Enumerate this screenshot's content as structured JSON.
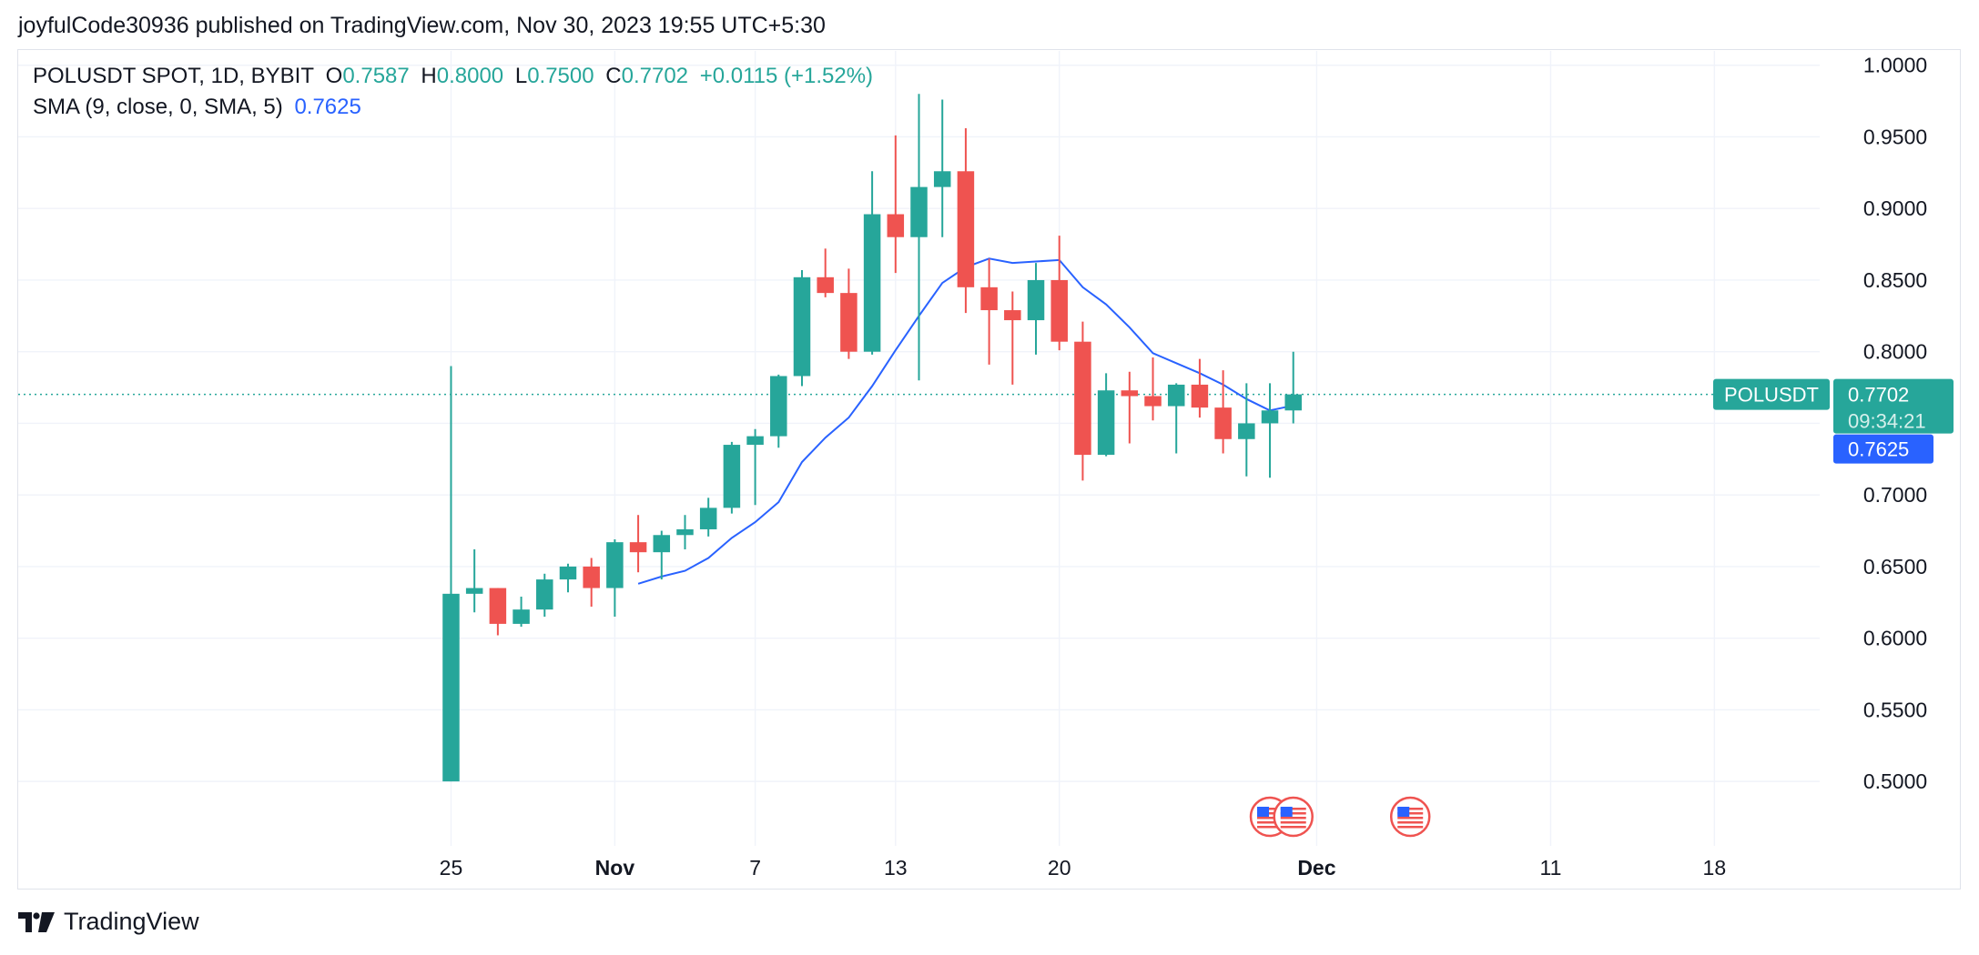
{
  "header": {
    "published_line": "joyfulCode30936 published on TradingView.com, Nov 30, 2023 19:55 UTC+5:30"
  },
  "legend": {
    "symbol": "POLUSDT SPOT, 1D, BYBIT",
    "o_label": "O",
    "o_value": "0.7587",
    "h_label": "H",
    "h_value": "0.8000",
    "l_label": "L",
    "l_value": "0.7500",
    "c_label": "C",
    "c_value": "0.7702",
    "change": "+0.0115 (+1.52%)",
    "sma_label": "SMA (9, close, 0, SMA, 5)",
    "sma_value": "0.7625"
  },
  "price_badge": {
    "symbol": "POLUSDT",
    "price": "0.7702",
    "countdown": "09:34:21",
    "sma_price": "0.7625"
  },
  "footer": {
    "brand": "TradingView"
  },
  "colors": {
    "up": "#26a69a",
    "down": "#ef5350",
    "sma": "#2962ff",
    "grid": "#f0f3fa",
    "text": "#131722"
  },
  "chart_data": {
    "type": "candlestick",
    "y_ticks": [
      "1.0000",
      "0.9500",
      "0.9000",
      "0.8500",
      "0.8000",
      "0.7500",
      "0.7000",
      "0.6500",
      "0.6000",
      "0.5500",
      "0.5000"
    ],
    "ylim": [
      0.455,
      1.01
    ],
    "x_ticks": [
      {
        "label": "25",
        "day": 25,
        "bold": false
      },
      {
        "label": "Nov",
        "day": 32,
        "bold": true
      },
      {
        "label": "7",
        "day": 38,
        "bold": false
      },
      {
        "label": "13",
        "day": 44,
        "bold": false
      },
      {
        "label": "20",
        "day": 51,
        "bold": false
      },
      {
        "label": "Dec",
        "day": 62,
        "bold": true
      },
      {
        "label": "11",
        "day": 72,
        "bold": false
      },
      {
        "label": "18",
        "day": 79,
        "bold": false
      }
    ],
    "xlim": [
      6.5,
      83.5
    ],
    "candles": [
      {
        "day": 25,
        "o": 0.5,
        "h": 0.79,
        "l": 0.5,
        "c": 0.631
      },
      {
        "day": 26,
        "o": 0.631,
        "h": 0.662,
        "l": 0.618,
        "c": 0.635
      },
      {
        "day": 27,
        "o": 0.635,
        "h": 0.635,
        "l": 0.602,
        "c": 0.61
      },
      {
        "day": 28,
        "o": 0.61,
        "h": 0.629,
        "l": 0.608,
        "c": 0.62
      },
      {
        "day": 29,
        "o": 0.62,
        "h": 0.645,
        "l": 0.615,
        "c": 0.641
      },
      {
        "day": 30,
        "o": 0.641,
        "h": 0.652,
        "l": 0.632,
        "c": 0.65
      },
      {
        "day": 31,
        "o": 0.65,
        "h": 0.656,
        "l": 0.622,
        "c": 0.635
      },
      {
        "day": 32,
        "o": 0.635,
        "h": 0.669,
        "l": 0.615,
        "c": 0.667
      },
      {
        "day": 33,
        "o": 0.667,
        "h": 0.686,
        "l": 0.646,
        "c": 0.66
      },
      {
        "day": 34,
        "o": 0.66,
        "h": 0.675,
        "l": 0.641,
        "c": 0.672
      },
      {
        "day": 35,
        "o": 0.672,
        "h": 0.686,
        "l": 0.662,
        "c": 0.676
      },
      {
        "day": 36,
        "o": 0.676,
        "h": 0.698,
        "l": 0.671,
        "c": 0.691
      },
      {
        "day": 37,
        "o": 0.691,
        "h": 0.737,
        "l": 0.687,
        "c": 0.735
      },
      {
        "day": 38,
        "o": 0.735,
        "h": 0.746,
        "l": 0.693,
        "c": 0.741
      },
      {
        "day": 39,
        "o": 0.741,
        "h": 0.784,
        "l": 0.733,
        "c": 0.783
      },
      {
        "day": 40,
        "o": 0.783,
        "h": 0.857,
        "l": 0.776,
        "c": 0.852
      },
      {
        "day": 41,
        "o": 0.852,
        "h": 0.872,
        "l": 0.838,
        "c": 0.841
      },
      {
        "day": 42,
        "o": 0.841,
        "h": 0.858,
        "l": 0.795,
        "c": 0.8
      },
      {
        "day": 43,
        "o": 0.8,
        "h": 0.926,
        "l": 0.798,
        "c": 0.896
      },
      {
        "day": 44,
        "o": 0.896,
        "h": 0.951,
        "l": 0.855,
        "c": 0.88
      },
      {
        "day": 45,
        "o": 0.88,
        "h": 0.98,
        "l": 0.78,
        "c": 0.915
      },
      {
        "day": 46,
        "o": 0.915,
        "h": 0.976,
        "l": 0.88,
        "c": 0.926
      },
      {
        "day": 47,
        "o": 0.926,
        "h": 0.956,
        "l": 0.827,
        "c": 0.845
      },
      {
        "day": 48,
        "o": 0.845,
        "h": 0.865,
        "l": 0.791,
        "c": 0.829
      },
      {
        "day": 49,
        "o": 0.829,
        "h": 0.842,
        "l": 0.777,
        "c": 0.822
      },
      {
        "day": 50,
        "o": 0.822,
        "h": 0.862,
        "l": 0.798,
        "c": 0.85
      },
      {
        "day": 51,
        "o": 0.85,
        "h": 0.881,
        "l": 0.801,
        "c": 0.807
      },
      {
        "day": 52,
        "o": 0.807,
        "h": 0.821,
        "l": 0.71,
        "c": 0.728
      },
      {
        "day": 53,
        "o": 0.728,
        "h": 0.785,
        "l": 0.727,
        "c": 0.773
      },
      {
        "day": 54,
        "o": 0.773,
        "h": 0.786,
        "l": 0.736,
        "c": 0.769
      },
      {
        "day": 55,
        "o": 0.769,
        "h": 0.796,
        "l": 0.752,
        "c": 0.762
      },
      {
        "day": 56,
        "o": 0.762,
        "h": 0.778,
        "l": 0.729,
        "c": 0.777
      },
      {
        "day": 57,
        "o": 0.777,
        "h": 0.795,
        "l": 0.754,
        "c": 0.761
      },
      {
        "day": 58,
        "o": 0.761,
        "h": 0.787,
        "l": 0.729,
        "c": 0.739
      },
      {
        "day": 59,
        "o": 0.739,
        "h": 0.778,
        "l": 0.713,
        "c": 0.75
      },
      {
        "day": 60,
        "o": 0.75,
        "h": 0.778,
        "l": 0.712,
        "c": 0.759
      },
      {
        "day": 61,
        "o": 0.759,
        "h": 0.8,
        "l": 0.75,
        "c": 0.7702
      }
    ],
    "sma": [
      {
        "day": 33,
        "v": 0.638
      },
      {
        "day": 34,
        "v": 0.643
      },
      {
        "day": 35,
        "v": 0.647
      },
      {
        "day": 36,
        "v": 0.656
      },
      {
        "day": 37,
        "v": 0.67
      },
      {
        "day": 38,
        "v": 0.681
      },
      {
        "day": 39,
        "v": 0.695
      },
      {
        "day": 40,
        "v": 0.723
      },
      {
        "day": 41,
        "v": 0.74
      },
      {
        "day": 42,
        "v": 0.754
      },
      {
        "day": 43,
        "v": 0.776
      },
      {
        "day": 44,
        "v": 0.801
      },
      {
        "day": 45,
        "v": 0.825
      },
      {
        "day": 46,
        "v": 0.848
      },
      {
        "day": 47,
        "v": 0.859
      },
      {
        "day": 48,
        "v": 0.865
      },
      {
        "day": 49,
        "v": 0.862
      },
      {
        "day": 50,
        "v": 0.863
      },
      {
        "day": 51,
        "v": 0.864
      },
      {
        "day": 52,
        "v": 0.845
      },
      {
        "day": 53,
        "v": 0.833
      },
      {
        "day": 54,
        "v": 0.817
      },
      {
        "day": 55,
        "v": 0.799
      },
      {
        "day": 56,
        "v": 0.792
      },
      {
        "day": 57,
        "v": 0.785
      },
      {
        "day": 58,
        "v": 0.777
      },
      {
        "day": 59,
        "v": 0.767
      },
      {
        "day": 60,
        "v": 0.759
      },
      {
        "day": 61,
        "v": 0.7625
      }
    ],
    "events": [
      {
        "day": 60,
        "icon": "us-flag-icon"
      },
      {
        "day": 61,
        "icon": "us-flag-icon"
      },
      {
        "day": 66,
        "icon": "us-flag-icon"
      }
    ]
  }
}
